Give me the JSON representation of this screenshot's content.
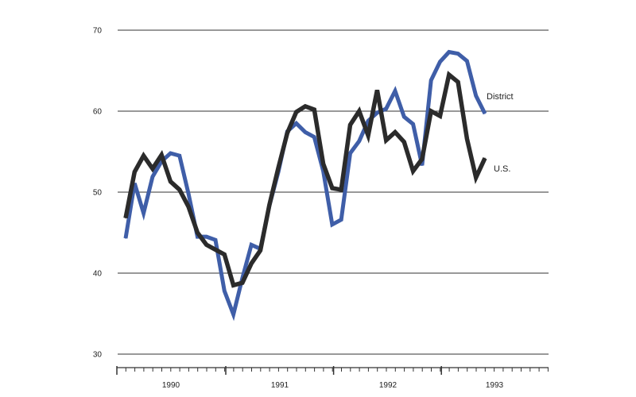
{
  "chart_data": {
    "type": "line",
    "title": "",
    "xlabel": "",
    "ylabel": "",
    "ylim": [
      30,
      70
    ],
    "yticks": [
      30,
      40,
      50,
      60,
      70
    ],
    "ytick_labels": [
      "30",
      "40",
      "50",
      "60",
      "70"
    ],
    "xtick_labels": [
      "1990",
      "1991",
      "1992",
      "1993"
    ],
    "grid": "horizontal",
    "x_start": "1989-08",
    "x_interval": "month",
    "series": [
      {
        "name": "District",
        "color": "#3f5ea8",
        "values": [
          44.3,
          51.1,
          47.4,
          51.9,
          53.8,
          54.8,
          54.5,
          49.8,
          44.5,
          44.5,
          44.1,
          37.8,
          34.9,
          39.4,
          43.5,
          43.0,
          48.3,
          52.5,
          57.5,
          58.5,
          57.4,
          56.8,
          52.6,
          46.0,
          46.6,
          54.8,
          56.3,
          58.8,
          59.8,
          60.3,
          62.5,
          59.3,
          58.4,
          53.3,
          63.8,
          66.1,
          67.3,
          67.1,
          66.2,
          61.9,
          59.7
        ]
      },
      {
        "name": "U.S.",
        "color": "#2b2b2b",
        "values": [
          46.8,
          52.5,
          54.5,
          52.9,
          54.6,
          51.3,
          50.3,
          48.2,
          45.0,
          43.5,
          42.9,
          42.3,
          38.5,
          38.8,
          41.2,
          42.8,
          48.4,
          53.0,
          57.3,
          59.9,
          60.6,
          60.2,
          53.5,
          50.5,
          50.3,
          58.3,
          60.0,
          57.0,
          62.6,
          56.4,
          57.4,
          56.2,
          52.6,
          54.1,
          60.0,
          59.4,
          64.5,
          63.6,
          56.6,
          51.8,
          54.2
        ]
      }
    ]
  }
}
